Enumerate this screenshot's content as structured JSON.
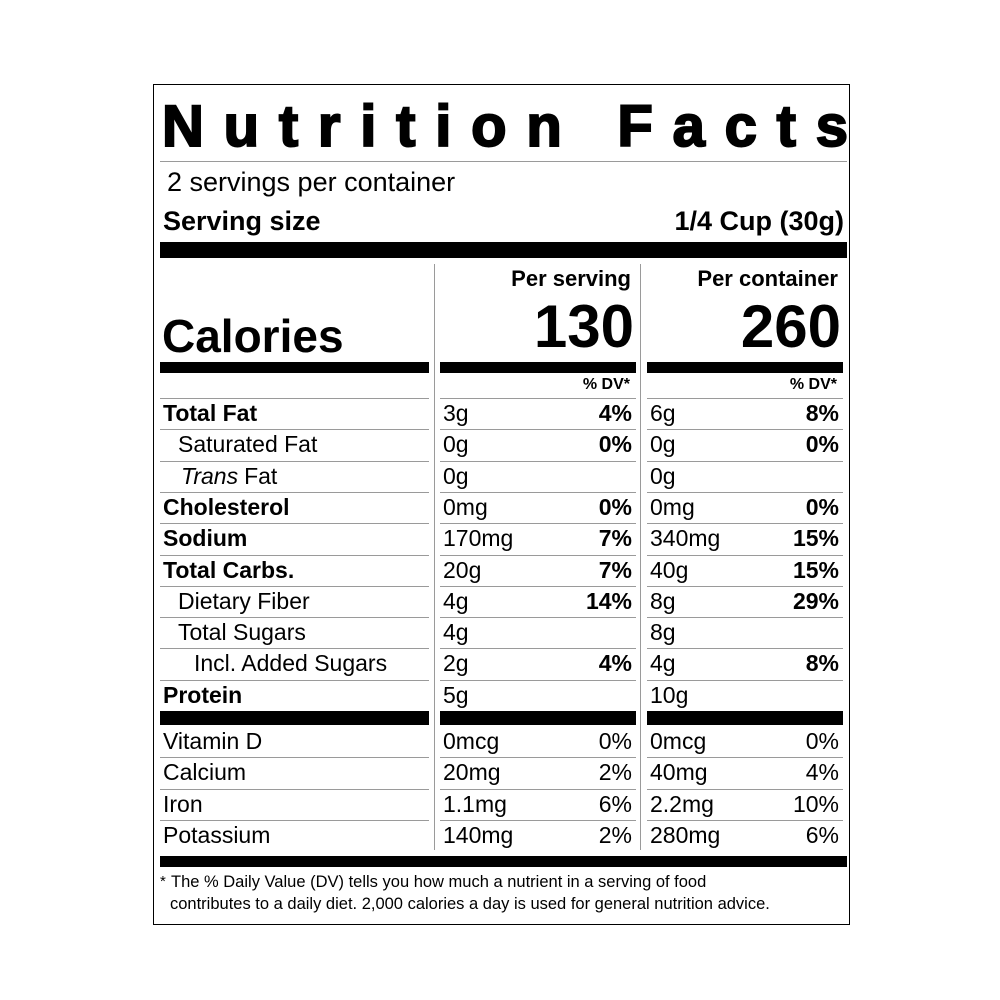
{
  "header": {
    "title": "Nutrition Facts",
    "servings": "2 servings per container",
    "serving_size_label": "Serving size",
    "serving_size": "1/4 Cup (30g)"
  },
  "columns": [
    "Per serving",
    "Per container"
  ],
  "calories": {
    "label": "Calories",
    "values": [
      130,
      260
    ]
  },
  "dv_header": "% DV*",
  "nutrients": [
    {
      "name": "Total Fat",
      "bold": true,
      "indent": 0,
      "amounts": [
        "3g",
        "6g"
      ],
      "dv": [
        "4%",
        "8%"
      ]
    },
    {
      "name": "Saturated Fat",
      "bold": false,
      "indent": 1,
      "amounts": [
        "0g",
        "0g"
      ],
      "dv": [
        "0%",
        "0%"
      ]
    },
    {
      "name_italic": "Trans",
      "name": "Fat",
      "bold": false,
      "indent": 1,
      "amounts": [
        "0g",
        "0g"
      ]
    },
    {
      "name": "Cholesterol",
      "bold": true,
      "indent": 0,
      "amounts": [
        "0mg",
        "0mg"
      ],
      "dv": [
        "0%",
        "0%"
      ]
    },
    {
      "name": "Sodium",
      "bold": true,
      "indent": 0,
      "amounts": [
        "170mg",
        "340mg"
      ],
      "dv": [
        "7%",
        "15%"
      ]
    },
    {
      "name": "Total Carbs.",
      "bold": true,
      "indent": 0,
      "amounts": [
        "20g",
        "40g"
      ],
      "dv": [
        "7%",
        "15%"
      ]
    },
    {
      "name": "Dietary Fiber",
      "bold": false,
      "indent": 1,
      "amounts": [
        "4g",
        "8g"
      ],
      "dv": [
        "14%",
        "29%"
      ]
    },
    {
      "name": "Total Sugars",
      "bold": false,
      "indent": 1,
      "amounts": [
        "4g",
        "8g"
      ]
    },
    {
      "name": "Incl. Added Sugars",
      "bold": false,
      "indent": 2,
      "amounts": [
        "2g",
        "4g"
      ],
      "dv": [
        "4%",
        "8%"
      ]
    },
    {
      "name": "Protein",
      "bold": true,
      "indent": 0,
      "amounts": [
        "5g",
        "10g"
      ]
    }
  ],
  "vitamins": [
    {
      "name": "Vitamin D",
      "amounts": [
        "0mcg",
        "0mcg"
      ],
      "dv": [
        "0%",
        "0%"
      ]
    },
    {
      "name": "Calcium",
      "amounts": [
        "20mg",
        "40mg"
      ],
      "dv": [
        "2%",
        "4%"
      ]
    },
    {
      "name": "Iron",
      "amounts": [
        "1.1mg",
        "2.2mg"
      ],
      "dv": [
        "6%",
        "10%"
      ]
    },
    {
      "name": "Potassium",
      "amounts": [
        "140mg",
        "280mg"
      ],
      "dv": [
        "2%",
        "6%"
      ]
    }
  ],
  "footnote": [
    "The % Daily Value (DV) tells you how much a nutrient in a serving of food",
    "contributes to a daily diet. 2,000 calories a day is used for general nutrition advice."
  ]
}
